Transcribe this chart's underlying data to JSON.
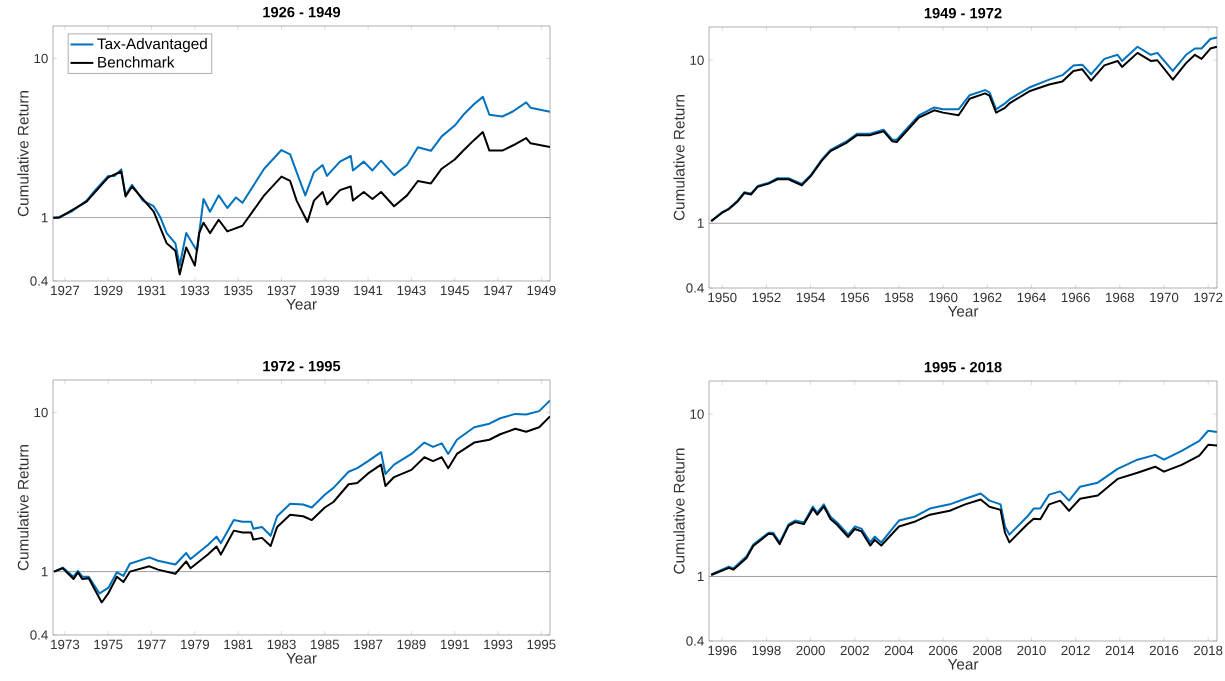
{
  "chart_data": [
    {
      "type": "line",
      "title": "1926 - 1949",
      "xlabel": "Year",
      "ylabel": "Cumulative Return",
      "log": "y",
      "legend": "top left",
      "xlim": [
        1926.45,
        1949.4
      ],
      "ylim": [
        0.4,
        16
      ],
      "xticks": [
        1927,
        1929,
        1931,
        1933,
        1935,
        1937,
        1939,
        1941,
        1943,
        1945,
        1947,
        1949
      ],
      "yticks": [
        0.4,
        1,
        10
      ],
      "ref_lines": [
        {
          "axis": "y",
          "value": 1,
          "color": "#808080"
        }
      ],
      "series": [
        {
          "name": "Tax-Advantaged",
          "color": "#0072bd",
          "x": [
            1926.46,
            1926.74,
            1927.3,
            1928.0,
            1928.4,
            1929.0,
            1929.3,
            1929.6,
            1929.8,
            1930.1,
            1930.6,
            1931.1,
            1931.4,
            1931.7,
            1932.1,
            1932.3,
            1932.6,
            1933.0,
            1933.1,
            1933.4,
            1933.7,
            1934.1,
            1934.5,
            1934.9,
            1935.2,
            1936.2,
            1937.0,
            1937.4,
            1937.7,
            1938.1,
            1938.5,
            1938.9,
            1939.1,
            1939.7,
            1940.2,
            1940.3,
            1940.8,
            1941.2,
            1941.6,
            1942.2,
            1942.8,
            1943.3,
            1943.9,
            1944.4,
            1945.0,
            1945.4,
            1945.9,
            1946.3,
            1946.6,
            1947.2,
            1947.7,
            1948.3,
            1948.5,
            1949.4
          ],
          "values": [
            1.0,
            1.01,
            1.09,
            1.28,
            1.49,
            1.83,
            1.83,
            2.01,
            1.38,
            1.61,
            1.28,
            1.18,
            1.01,
            0.8,
            0.69,
            0.5,
            0.8,
            0.65,
            0.62,
            1.31,
            1.09,
            1.38,
            1.15,
            1.34,
            1.24,
            2.03,
            2.66,
            2.5,
            1.93,
            1.38,
            1.93,
            2.14,
            1.83,
            2.25,
            2.44,
            1.98,
            2.25,
            1.98,
            2.28,
            1.85,
            2.14,
            2.77,
            2.63,
            3.24,
            3.79,
            4.43,
            5.18,
            5.74,
            4.43,
            4.32,
            4.66,
            5.3,
            4.91,
            4.62
          ]
        },
        {
          "name": "Benchmark",
          "color": "#000000",
          "x": [
            1926.46,
            1926.74,
            1928.0,
            1929.0,
            1929.6,
            1929.8,
            1930.1,
            1931.1,
            1931.7,
            1932.1,
            1932.3,
            1932.6,
            1933.0,
            1933.2,
            1933.4,
            1933.7,
            1934.1,
            1934.5,
            1935.2,
            1936.2,
            1937.0,
            1937.4,
            1937.7,
            1938.2,
            1938.5,
            1938.9,
            1939.1,
            1939.7,
            1940.2,
            1940.3,
            1940.8,
            1941.2,
            1941.6,
            1942.2,
            1942.8,
            1943.3,
            1943.9,
            1944.4,
            1945.0,
            1945.4,
            1945.9,
            1946.3,
            1946.6,
            1947.2,
            1947.7,
            1948.3,
            1948.5,
            1949.4
          ],
          "values": [
            1.0,
            1.0,
            1.26,
            1.79,
            1.95,
            1.36,
            1.57,
            1.09,
            0.69,
            0.62,
            0.44,
            0.65,
            0.5,
            0.8,
            0.93,
            0.8,
            0.97,
            0.82,
            0.89,
            1.38,
            1.81,
            1.7,
            1.28,
            0.94,
            1.28,
            1.45,
            1.21,
            1.49,
            1.57,
            1.28,
            1.45,
            1.31,
            1.45,
            1.18,
            1.38,
            1.7,
            1.64,
            2.03,
            2.32,
            2.64,
            3.08,
            3.45,
            2.64,
            2.64,
            2.85,
            3.16,
            2.93,
            2.78
          ]
        }
      ]
    },
    {
      "type": "line",
      "title": "1949 - 1972",
      "xlabel": "Year",
      "ylabel": "Cumulative Return",
      "log": "y",
      "xlim": [
        1949.4,
        1972.4
      ],
      "ylim": [
        0.4,
        16
      ],
      "xticks": [
        1950,
        1952,
        1954,
        1956,
        1958,
        1960,
        1962,
        1964,
        1966,
        1968,
        1970,
        1972
      ],
      "yticks": [
        0.4,
        1,
        10
      ],
      "ref_lines": [
        {
          "axis": "y",
          "value": 1,
          "color": "#808080"
        }
      ],
      "series": [
        {
          "color": "#0072bd",
          "x": [
            1949.5,
            1950.0,
            1950.3,
            1950.7,
            1951.0,
            1951.3,
            1951.6,
            1952.1,
            1952.5,
            1953.0,
            1953.6,
            1954.0,
            1954.5,
            1954.9,
            1955.6,
            1956.1,
            1956.7,
            1957.3,
            1957.7,
            1957.9,
            1958.9,
            1959.6,
            1960.0,
            1960.7,
            1961.2,
            1961.9,
            1962.1,
            1962.4,
            1962.8,
            1963.0,
            1963.9,
            1964.8,
            1965.4,
            1965.9,
            1966.3,
            1966.7,
            1967.3,
            1967.9,
            1968.1,
            1968.8,
            1969.4,
            1969.7,
            1970.4,
            1971.0,
            1971.4,
            1971.7,
            1972.1,
            1972.4
          ],
          "values": [
            1.03,
            1.17,
            1.23,
            1.38,
            1.55,
            1.52,
            1.69,
            1.77,
            1.89,
            1.89,
            1.74,
            1.97,
            2.45,
            2.82,
            3.16,
            3.54,
            3.54,
            3.75,
            3.25,
            3.25,
            4.58,
            5.13,
            5.0,
            5.0,
            6.1,
            6.56,
            6.35,
            5.0,
            5.43,
            5.75,
            6.8,
            7.6,
            8.1,
            9.3,
            9.4,
            8.2,
            10.2,
            10.8,
            9.9,
            12.1,
            10.8,
            11.1,
            8.6,
            10.8,
            11.8,
            11.8,
            13.5,
            13.8
          ]
        },
        {
          "color": "#000000",
          "x": [
            1949.5,
            1950.0,
            1950.3,
            1950.7,
            1951.0,
            1951.3,
            1951.6,
            1952.1,
            1952.5,
            1953.0,
            1953.6,
            1954.0,
            1954.5,
            1954.9,
            1955.6,
            1956.1,
            1956.7,
            1957.3,
            1957.7,
            1957.9,
            1958.9,
            1959.6,
            1960.0,
            1960.7,
            1961.2,
            1961.9,
            1962.1,
            1962.4,
            1962.8,
            1963.0,
            1963.9,
            1964.8,
            1965.4,
            1965.9,
            1966.3,
            1966.7,
            1967.3,
            1967.9,
            1968.1,
            1968.8,
            1969.4,
            1969.7,
            1970.4,
            1971.0,
            1971.4,
            1971.7,
            1972.1,
            1972.4
          ],
          "values": [
            1.03,
            1.16,
            1.22,
            1.36,
            1.53,
            1.5,
            1.67,
            1.75,
            1.86,
            1.86,
            1.71,
            1.94,
            2.41,
            2.77,
            3.1,
            3.47,
            3.47,
            3.67,
            3.18,
            3.15,
            4.45,
            4.93,
            4.77,
            4.6,
            5.8,
            6.26,
            6.06,
            4.77,
            5.1,
            5.43,
            6.45,
            7.1,
            7.4,
            8.6,
            8.8,
            7.5,
            9.3,
            9.9,
            9.1,
            11.1,
            9.9,
            10.0,
            7.6,
            9.6,
            10.8,
            10.2,
            11.8,
            12.1
          ]
        }
      ]
    },
    {
      "type": "line",
      "title": "1972 - 1995",
      "xlabel": "Year",
      "ylabel": "Cumulative Return",
      "log": "y",
      "xlim": [
        1972.45,
        1995.4
      ],
      "ylim": [
        0.4,
        16
      ],
      "xticks": [
        1973,
        1975,
        1977,
        1979,
        1981,
        1983,
        1985,
        1987,
        1989,
        1991,
        1993,
        1995
      ],
      "yticks": [
        0.4,
        1,
        10
      ],
      "ref_lines": [
        {
          "axis": "y",
          "value": 1,
          "color": "#808080"
        }
      ],
      "series": [
        {
          "color": "#0072bd",
          "x": [
            1972.5,
            1972.9,
            1973.4,
            1973.6,
            1973.8,
            1974.1,
            1974.6,
            1975.0,
            1975.4,
            1975.7,
            1976.0,
            1976.9,
            1977.3,
            1978.1,
            1978.6,
            1978.8,
            1979.6,
            1980.0,
            1980.2,
            1980.8,
            1981.2,
            1981.6,
            1981.7,
            1982.1,
            1982.5,
            1982.8,
            1983.4,
            1984.0,
            1984.4,
            1985.0,
            1985.4,
            1986.1,
            1986.5,
            1987.0,
            1987.6,
            1987.8,
            1988.2,
            1989.0,
            1989.6,
            1990.0,
            1990.4,
            1990.7,
            1991.1,
            1991.9,
            1992.6,
            1993.1,
            1993.8,
            1994.3,
            1994.9,
            1995.4
          ],
          "values": [
            1.0,
            1.06,
            0.93,
            1.01,
            0.93,
            0.93,
            0.73,
            0.79,
            0.99,
            0.94,
            1.12,
            1.23,
            1.17,
            1.11,
            1.31,
            1.2,
            1.47,
            1.66,
            1.51,
            2.11,
            2.06,
            2.06,
            1.86,
            1.91,
            1.68,
            2.23,
            2.67,
            2.64,
            2.53,
            3.04,
            3.36,
            4.24,
            4.47,
            4.95,
            5.63,
            4.11,
            4.7,
            5.49,
            6.47,
            6.08,
            6.4,
            5.49,
            6.74,
            8.08,
            8.5,
            9.2,
            9.8,
            9.7,
            10.2,
            11.9
          ]
        },
        {
          "color": "#000000",
          "x": [
            1972.5,
            1972.9,
            1973.4,
            1973.6,
            1973.8,
            1974.1,
            1974.7,
            1975.0,
            1975.4,
            1975.7,
            1976.0,
            1976.9,
            1977.3,
            1978.1,
            1978.6,
            1978.8,
            1979.6,
            1980.0,
            1980.2,
            1980.8,
            1981.2,
            1981.6,
            1981.7,
            1982.1,
            1982.5,
            1982.8,
            1983.4,
            1984.0,
            1984.4,
            1985.0,
            1985.4,
            1986.1,
            1986.5,
            1987.0,
            1987.6,
            1987.8,
            1988.2,
            1989.0,
            1989.6,
            1990.0,
            1990.4,
            1990.7,
            1991.1,
            1991.9,
            1992.6,
            1993.1,
            1993.8,
            1994.3,
            1994.9,
            1995.4
          ],
          "values": [
            1.0,
            1.05,
            0.9,
            0.99,
            0.9,
            0.91,
            0.64,
            0.73,
            0.93,
            0.86,
            1.0,
            1.08,
            1.03,
            0.97,
            1.16,
            1.05,
            1.28,
            1.44,
            1.28,
            1.81,
            1.76,
            1.76,
            1.59,
            1.63,
            1.45,
            1.91,
            2.28,
            2.23,
            2.11,
            2.53,
            2.74,
            3.54,
            3.6,
            4.14,
            4.7,
            3.45,
            3.93,
            4.36,
            5.23,
            4.95,
            5.23,
            4.47,
            5.49,
            6.47,
            6.74,
            7.3,
            7.9,
            7.57,
            8.08,
            9.45
          ]
        }
      ]
    },
    {
      "type": "line",
      "title": "1995 - 2018",
      "xlabel": "Year",
      "ylabel": "Cumulative Return",
      "log": "y",
      "xlim": [
        1995.4,
        2018.4
      ],
      "ylim": [
        0.4,
        16
      ],
      "xticks": [
        1996,
        1998,
        2000,
        2002,
        2004,
        2006,
        2008,
        2010,
        2012,
        2014,
        2016,
        2018
      ],
      "yticks": [
        0.4,
        1,
        10
      ],
      "ref_lines": [
        {
          "axis": "y",
          "value": 1,
          "color": "#808080"
        }
      ],
      "series": [
        {
          "color": "#0072bd",
          "x": [
            1995.5,
            1996.3,
            1996.5,
            1997.1,
            1997.4,
            1998.1,
            1998.3,
            1998.6,
            1999.0,
            1999.3,
            1999.7,
            2000.0,
            2000.1,
            2000.3,
            2000.6,
            2000.9,
            2001.2,
            2001.7,
            2002.0,
            2002.3,
            2002.7,
            2002.9,
            2003.2,
            2004.0,
            2004.7,
            2005.4,
            2006.3,
            2007.0,
            2007.7,
            2008.1,
            2008.6,
            2008.8,
            2009.0,
            2009.8,
            2010.1,
            2010.4,
            2010.8,
            2011.3,
            2011.7,
            2012.2,
            2013.0,
            2013.9,
            2014.8,
            2015.6,
            2016.0,
            2016.8,
            2017.6,
            2018.0,
            2018.4
          ],
          "values": [
            1.03,
            1.15,
            1.12,
            1.33,
            1.57,
            1.86,
            1.86,
            1.62,
            2.09,
            2.21,
            2.15,
            2.54,
            2.69,
            2.47,
            2.78,
            2.33,
            2.15,
            1.81,
            2.03,
            1.97,
            1.62,
            1.76,
            1.62,
            2.21,
            2.33,
            2.62,
            2.78,
            3.01,
            3.24,
            2.93,
            2.78,
            2.03,
            1.81,
            2.33,
            2.62,
            2.62,
            3.19,
            3.34,
            2.93,
            3.57,
            3.78,
            4.6,
            5.24,
            5.61,
            5.24,
            5.94,
            6.84,
            7.9,
            7.75
          ]
        },
        {
          "color": "#000000",
          "x": [
            1995.5,
            1996.3,
            1996.5,
            1997.1,
            1997.4,
            1998.1,
            1998.3,
            1998.6,
            1999.0,
            1999.3,
            1999.7,
            2000.0,
            2000.1,
            2000.3,
            2000.6,
            2000.9,
            2001.2,
            2001.7,
            2002.0,
            2002.3,
            2002.7,
            2002.9,
            2003.2,
            2004.0,
            2004.7,
            2005.4,
            2006.3,
            2007.0,
            2007.7,
            2008.1,
            2008.6,
            2008.8,
            2009.0,
            2009.8,
            2010.1,
            2010.4,
            2010.8,
            2011.3,
            2011.7,
            2012.2,
            2013.0,
            2013.9,
            2014.8,
            2015.6,
            2016.0,
            2016.8,
            2017.6,
            2018.0,
            2018.4
          ],
          "values": [
            1.02,
            1.13,
            1.1,
            1.3,
            1.54,
            1.83,
            1.82,
            1.58,
            2.05,
            2.16,
            2.1,
            2.47,
            2.62,
            2.4,
            2.7,
            2.26,
            2.08,
            1.75,
            1.96,
            1.9,
            1.55,
            1.68,
            1.55,
            2.03,
            2.17,
            2.4,
            2.54,
            2.78,
            2.98,
            2.69,
            2.57,
            1.86,
            1.62,
            2.09,
            2.27,
            2.25,
            2.78,
            2.93,
            2.54,
            3.01,
            3.15,
            3.99,
            4.35,
            4.74,
            4.42,
            4.87,
            5.55,
            6.47,
            6.4
          ]
        }
      ]
    }
  ]
}
